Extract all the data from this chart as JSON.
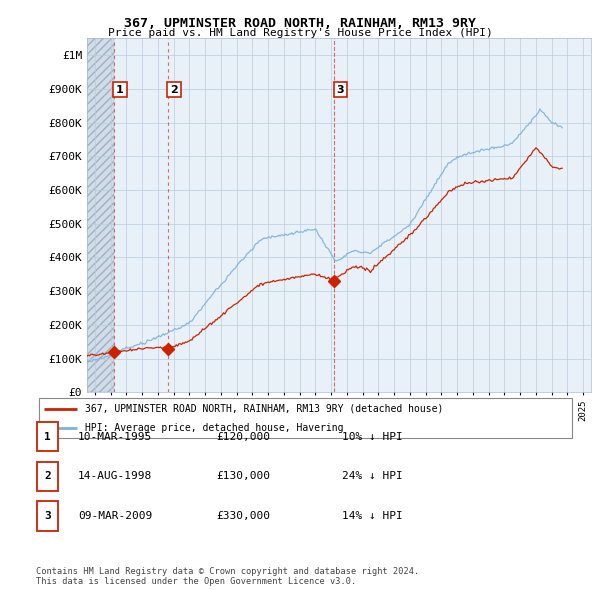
{
  "title": "367, UPMINSTER ROAD NORTH, RAINHAM, RM13 9RY",
  "subtitle": "Price paid vs. HM Land Registry's House Price Index (HPI)",
  "ylim": [
    0,
    1050000
  ],
  "yticks": [
    0,
    100000,
    200000,
    300000,
    400000,
    500000,
    600000,
    700000,
    800000,
    900000,
    1000000
  ],
  "ytick_labels": [
    "£0",
    "£100K",
    "£200K",
    "£300K",
    "£400K",
    "£500K",
    "£600K",
    "£700K",
    "£800K",
    "£900K",
    "£1M"
  ],
  "xlim_start": 1993.5,
  "xlim_end": 2025.5,
  "sale_dates": [
    1995.19,
    1998.62,
    2009.19
  ],
  "sale_prices": [
    120000,
    130000,
    330000
  ],
  "sale_labels": [
    "1",
    "2",
    "3"
  ],
  "red_line_color": "#cc2200",
  "blue_line_color": "#7fb0d8",
  "label1": "367, UPMINSTER ROAD NORTH, RAINHAM, RM13 9RY (detached house)",
  "label2": "HPI: Average price, detached house, Havering",
  "table_rows": [
    {
      "num": "1",
      "date": "10-MAR-1995",
      "price": "£120,000",
      "hpi": "10% ↓ HPI"
    },
    {
      "num": "2",
      "date": "14-AUG-1998",
      "price": "£130,000",
      "hpi": "24% ↓ HPI"
    },
    {
      "num": "3",
      "date": "09-MAR-2009",
      "price": "£330,000",
      "hpi": "14% ↓ HPI"
    }
  ],
  "footnote1": "Contains HM Land Registry data © Crown copyright and database right 2024.",
  "footnote2": "This data is licensed under the Open Government Licence v3.0.",
  "grid_color": "#bbccdd",
  "label_box_color": "#cc2200",
  "hatch_bg": "#dde8f0",
  "plot_bg": "#e8f0f8"
}
